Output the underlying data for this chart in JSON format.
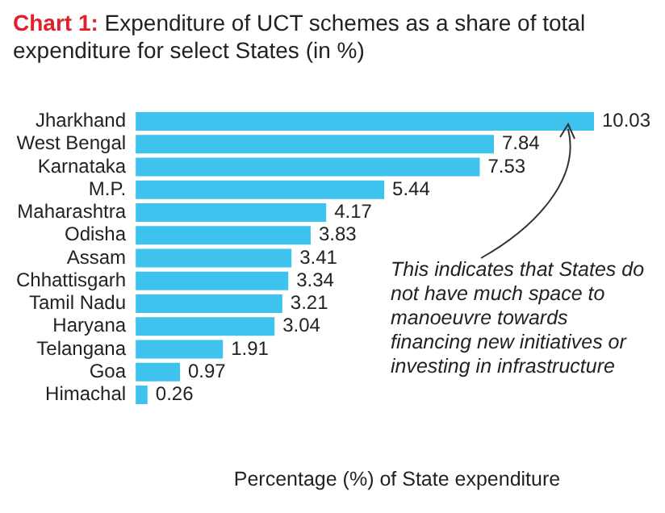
{
  "chart_data": {
    "type": "bar",
    "orientation": "horizontal",
    "title": "Chart 1: Expenditure of UCT schemes as a share of total expenditure for select States (in %)",
    "xlabel": "Percentage (%) of State expenditure",
    "categories": [
      "Jharkhand",
      "West Bengal",
      "Karnataka",
      "M.P.",
      "Maharashtra",
      "Odisha",
      "Assam",
      "Chhattisgarh",
      "Tamil Nadu",
      "Haryana",
      "Telangana",
      "Goa",
      "Himachal"
    ],
    "values": [
      10.03,
      7.84,
      7.53,
      5.44,
      4.17,
      3.83,
      3.41,
      3.34,
      3.21,
      3.04,
      1.91,
      0.97,
      0.26
    ],
    "color": "#3ec3ef",
    "data_labels": true,
    "grid": false,
    "legend": false,
    "annotations": [
      "This indicates that States do not have much space to manoeuvre towards financing new initiatives or investing in infrastructure"
    ]
  }
}
